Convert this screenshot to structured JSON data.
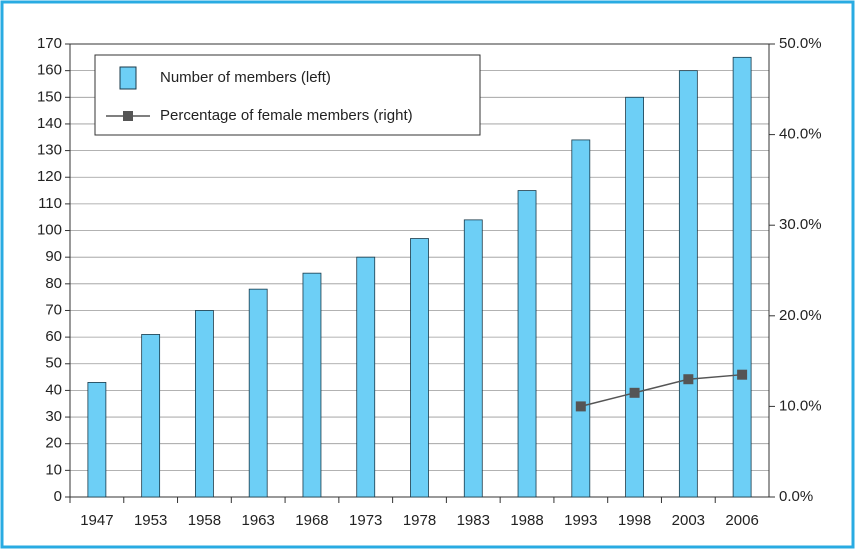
{
  "chart_data": {
    "type": "bar_line",
    "categories": [
      "1947",
      "1953",
      "1958",
      "1963",
      "1968",
      "1973",
      "1978",
      "1983",
      "1988",
      "1993",
      "1998",
      "2003",
      "2006"
    ],
    "series": [
      {
        "name": "Number of members (left)",
        "type": "bar",
        "color": "#6dcff6",
        "values": [
          43,
          61,
          70,
          78,
          84,
          90,
          97,
          104,
          115,
          134,
          150,
          160,
          165
        ]
      },
      {
        "name": "Percentage of female members (right)",
        "type": "line",
        "axis": "y2",
        "color": "#555555",
        "values": [
          null,
          null,
          null,
          null,
          null,
          null,
          null,
          null,
          null,
          10.0,
          11.5,
          13.0,
          13.5
        ]
      }
    ],
    "ylim": [
      0,
      170
    ],
    "yticks": [
      0,
      10,
      20,
      30,
      40,
      50,
      60,
      70,
      80,
      90,
      100,
      110,
      120,
      130,
      140,
      150,
      160,
      170
    ],
    "y2lim": [
      0,
      50
    ],
    "y2ticks": [
      {
        "value": 0,
        "label": "0.0%"
      },
      {
        "value": 10,
        "label": "10.0%"
      },
      {
        "value": 20,
        "label": "20.0%"
      },
      {
        "value": 30,
        "label": "30.0%"
      },
      {
        "value": 40,
        "label": "40.0%"
      },
      {
        "value": 50,
        "label": "50.0%"
      }
    ],
    "grid": true,
    "legend": "upper left"
  }
}
